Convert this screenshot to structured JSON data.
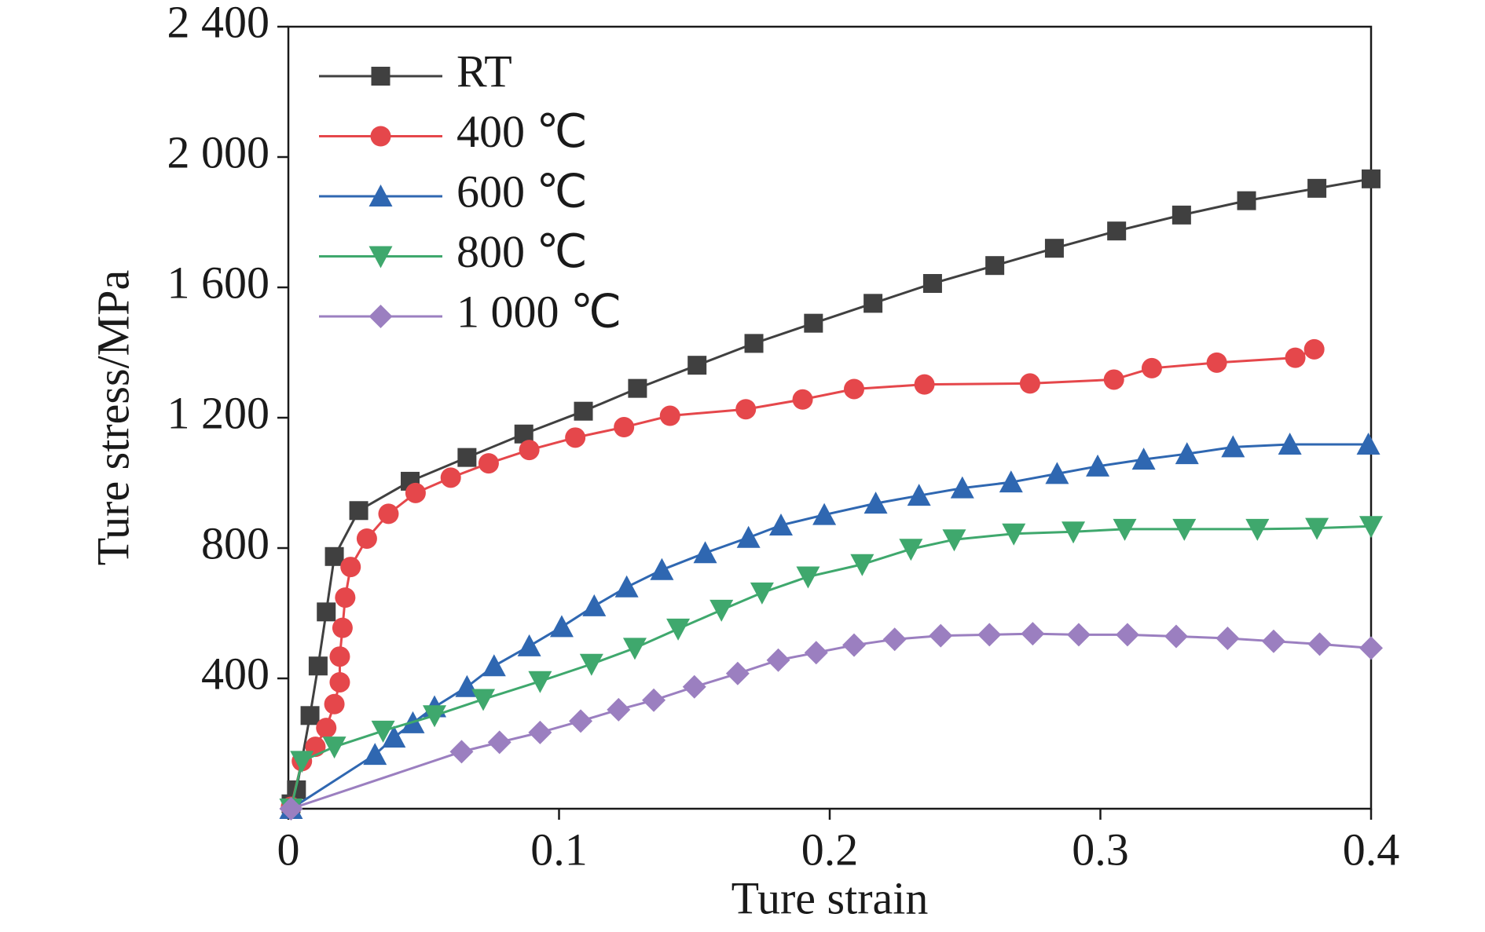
{
  "chart_data": {
    "type": "line",
    "xlabel": "Ture strain",
    "ylabel": "Ture stress/MPa",
    "xlim": [
      0,
      0.4
    ],
    "ylim": [
      0,
      2400
    ],
    "xticks": [
      0,
      0.1,
      0.2,
      0.3,
      0.4
    ],
    "yticks": [
      400,
      800,
      {
        "value": 1200,
        "label": "1 200"
      },
      {
        "value": 1600,
        "label": "1 600"
      },
      {
        "value": 2000,
        "label": "2 000"
      },
      {
        "value": 2400,
        "label": "2 400"
      }
    ],
    "legend": "upper left",
    "series": [
      {
        "name": "RT",
        "color": "#404040",
        "marker": "square",
        "x": [
          0.001,
          0.003,
          0.008,
          0.011,
          0.014,
          0.017,
          0.026,
          0.045,
          0.066,
          0.087,
          0.109,
          0.129,
          0.151,
          0.172,
          0.194,
          0.216,
          0.238,
          0.261,
          0.283,
          0.306,
          0.33,
          0.354,
          0.38,
          0.4
        ],
        "values": [
          15,
          58,
          286,
          438,
          604,
          774,
          915,
          1005,
          1078,
          1150,
          1220,
          1290,
          1361,
          1428,
          1490,
          1551,
          1612,
          1667,
          1720,
          1773,
          1822,
          1866,
          1904,
          1933
        ]
      },
      {
        "name": "400 ℃",
        "color": "#e5474b",
        "marker": "circle",
        "x": [
          0.001,
          0.005,
          0.01,
          0.014,
          0.017,
          0.019,
          0.019,
          0.02,
          0.021,
          0.023,
          0.029,
          0.037,
          0.047,
          0.06,
          0.074,
          0.089,
          0.106,
          0.124,
          0.141,
          0.169,
          0.19,
          0.209,
          0.235,
          0.274,
          0.305,
          0.319,
          0.343,
          0.372,
          0.379
        ],
        "values": [
          6,
          146,
          190,
          248,
          321,
          388,
          467,
          555,
          648,
          742,
          829,
          905,
          969,
          1016,
          1060,
          1101,
          1139,
          1171,
          1206,
          1226,
          1256,
          1288,
          1302,
          1305,
          1317,
          1352,
          1369,
          1384,
          1410
        ]
      },
      {
        "name": "600 ℃",
        "color": "#2f67b1",
        "marker": "triangle-up",
        "x": [
          0.001,
          0.032,
          0.039,
          0.046,
          0.054,
          0.066,
          0.076,
          0.089,
          0.101,
          0.113,
          0.125,
          0.138,
          0.154,
          0.17,
          0.182,
          0.198,
          0.217,
          0.233,
          0.249,
          0.267,
          0.284,
          0.299,
          0.316,
          0.332,
          0.349,
          0.37,
          0.399
        ],
        "values": [
          0,
          166,
          219,
          263,
          312,
          374,
          438,
          499,
          558,
          622,
          680,
          733,
          785,
          832,
          870,
          902,
          937,
          961,
          984,
          1002,
          1028,
          1051,
          1072,
          1089,
          1110,
          1118,
          1118
        ]
      },
      {
        "name": "800 ℃",
        "color": "#3fa86d",
        "marker": "triangle-down",
        "x": [
          0.001,
          0.005,
          0.017,
          0.035,
          0.054,
          0.072,
          0.093,
          0.112,
          0.128,
          0.144,
          0.16,
          0.175,
          0.192,
          0.212,
          0.23,
          0.246,
          0.268,
          0.29,
          0.309,
          0.331,
          0.358,
          0.38,
          0.4
        ],
        "values": [
          0,
          146,
          190,
          239,
          286,
          336,
          391,
          444,
          493,
          552,
          610,
          663,
          712,
          750,
          797,
          826,
          844,
          850,
          858,
          858,
          858,
          861,
          867
        ]
      },
      {
        "name": "1 000 ℃",
        "color": "#9b7fc0",
        "marker": "diamond",
        "x": [
          0.001,
          0.064,
          0.078,
          0.093,
          0.108,
          0.122,
          0.135,
          0.15,
          0.166,
          0.181,
          0.195,
          0.209,
          0.224,
          0.241,
          0.259,
          0.275,
          0.292,
          0.31,
          0.328,
          0.347,
          0.364,
          0.381,
          0.4
        ],
        "values": [
          0,
          175,
          204,
          234,
          269,
          304,
          333,
          374,
          415,
          456,
          479,
          502,
          520,
          531,
          534,
          537,
          534,
          534,
          529,
          523,
          514,
          505,
          493
        ]
      }
    ]
  }
}
